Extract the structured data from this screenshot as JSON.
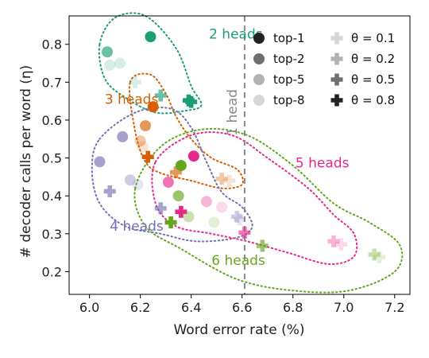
{
  "chart_data": {
    "type": "scatter",
    "xlabel": "Word error rate (%)",
    "ylabel": "# decoder calls per word (η)",
    "xlim": [
      5.92,
      7.26
    ],
    "ylim": [
      0.14,
      0.875
    ],
    "xticks": [
      "6.0",
      "6.2",
      "6.4",
      "6.6",
      "6.8",
      "7.0",
      "7.2"
    ],
    "yticks": [
      "0.2",
      "0.3",
      "0.4",
      "0.5",
      "0.6",
      "0.7",
      "0.8"
    ],
    "grid": false,
    "legend_placement": "top-right",
    "reference_line": {
      "x": 6.61,
      "label": "1 head",
      "color": "#888888"
    },
    "legend_top": [
      {
        "label": "top-1",
        "opacity": 1.0
      },
      {
        "label": "top-2",
        "opacity": 0.65
      },
      {
        "label": "top-5",
        "opacity": 0.35
      },
      {
        "label": "top-8",
        "opacity": 0.18
      }
    ],
    "legend_theta": [
      {
        "label": "θ = 0.1",
        "opacity": 0.18
      },
      {
        "label": "θ = 0.2",
        "opacity": 0.35
      },
      {
        "label": "θ = 0.5",
        "opacity": 0.65
      },
      {
        "label": "θ = 0.8",
        "opacity": 1.0
      }
    ],
    "groups": [
      {
        "label": "2 heads",
        "color": "#1b9e77",
        "label_pos": [
          6.47,
          0.815
        ],
        "region": [
          [
            6.04,
            0.8
          ],
          [
            6.1,
            0.87
          ],
          [
            6.22,
            0.875
          ],
          [
            6.34,
            0.79
          ],
          [
            6.4,
            0.69
          ],
          [
            6.44,
            0.64
          ],
          [
            6.38,
            0.625
          ],
          [
            6.26,
            0.62
          ],
          [
            6.14,
            0.66
          ],
          [
            6.06,
            0.71
          ]
        ],
        "points": [
          {
            "x": 6.24,
            "y": 0.82,
            "marker": "circle",
            "level": 1
          },
          {
            "x": 6.07,
            "y": 0.78,
            "marker": "circle",
            "level": 2
          },
          {
            "x": 6.12,
            "y": 0.75,
            "marker": "circle",
            "level": 4
          },
          {
            "x": 6.08,
            "y": 0.745,
            "marker": "circle",
            "level": 4
          },
          {
            "x": 6.18,
            "y": 0.7,
            "marker": "plus",
            "level": 4
          },
          {
            "x": 6.28,
            "y": 0.665,
            "marker": "plus",
            "level": 2
          },
          {
            "x": 6.39,
            "y": 0.652,
            "marker": "plus",
            "level": 1
          },
          {
            "x": 6.4,
            "y": 0.648,
            "marker": "plus",
            "level": 1
          }
        ]
      },
      {
        "label": "3 heads",
        "color": "#d95f02",
        "label_pos": [
          6.06,
          0.643
        ],
        "region": [
          [
            6.16,
            0.7
          ],
          [
            6.24,
            0.72
          ],
          [
            6.3,
            0.67
          ],
          [
            6.34,
            0.61
          ],
          [
            6.4,
            0.55
          ],
          [
            6.48,
            0.5
          ],
          [
            6.58,
            0.47
          ],
          [
            6.6,
            0.43
          ],
          [
            6.52,
            0.42
          ],
          [
            6.4,
            0.44
          ],
          [
            6.28,
            0.46
          ],
          [
            6.22,
            0.49
          ],
          [
            6.18,
            0.57
          ]
        ],
        "points": [
          {
            "x": 6.25,
            "y": 0.635,
            "marker": "circle",
            "level": 1
          },
          {
            "x": 6.22,
            "y": 0.585,
            "marker": "circle",
            "level": 2
          },
          {
            "x": 6.2,
            "y": 0.545,
            "marker": "circle",
            "level": 3
          },
          {
            "x": 6.21,
            "y": 0.53,
            "marker": "circle",
            "level": 4
          },
          {
            "x": 6.23,
            "y": 0.503,
            "marker": "plus",
            "level": 1
          },
          {
            "x": 6.34,
            "y": 0.462,
            "marker": "plus",
            "level": 2
          },
          {
            "x": 6.52,
            "y": 0.445,
            "marker": "plus",
            "level": 3
          },
          {
            "x": 6.55,
            "y": 0.44,
            "marker": "plus",
            "level": 4
          }
        ]
      },
      {
        "label": "4 heads",
        "color": "#7570b3",
        "label_pos": [
          6.08,
          0.308
        ],
        "region": [
          [
            6.04,
            0.55
          ],
          [
            6.18,
            0.62
          ],
          [
            6.32,
            0.63
          ],
          [
            6.4,
            0.58
          ],
          [
            6.46,
            0.49
          ],
          [
            6.52,
            0.41
          ],
          [
            6.6,
            0.37
          ],
          [
            6.64,
            0.32
          ],
          [
            6.58,
            0.29
          ],
          [
            6.42,
            0.28
          ],
          [
            6.28,
            0.3
          ],
          [
            6.14,
            0.32
          ],
          [
            6.04,
            0.38
          ],
          [
            6.01,
            0.47
          ]
        ],
        "points": [
          {
            "x": 6.13,
            "y": 0.556,
            "marker": "circle",
            "level": 2
          },
          {
            "x": 6.04,
            "y": 0.49,
            "marker": "circle",
            "level": 2
          },
          {
            "x": 6.16,
            "y": 0.442,
            "marker": "circle",
            "level": 3
          },
          {
            "x": 6.19,
            "y": 0.43,
            "marker": "circle",
            "level": 4
          },
          {
            "x": 6.08,
            "y": 0.412,
            "marker": "plus",
            "level": 2
          },
          {
            "x": 6.28,
            "y": 0.367,
            "marker": "plus",
            "level": 2
          },
          {
            "x": 6.58,
            "y": 0.345,
            "marker": "plus",
            "level": 3
          },
          {
            "x": 6.59,
            "y": 0.338,
            "marker": "plus",
            "level": 4
          }
        ]
      },
      {
        "label": "5 heads",
        "color": "#e7298a",
        "label_pos": [
          6.81,
          0.475
        ],
        "region": [
          [
            6.26,
            0.49
          ],
          [
            6.4,
            0.56
          ],
          [
            6.56,
            0.56
          ],
          [
            6.7,
            0.5
          ],
          [
            6.86,
            0.42
          ],
          [
            6.96,
            0.35
          ],
          [
            7.04,
            0.3
          ],
          [
            7.04,
            0.24
          ],
          [
            6.94,
            0.22
          ],
          [
            6.78,
            0.25
          ],
          [
            6.62,
            0.28
          ],
          [
            6.48,
            0.3
          ],
          [
            6.34,
            0.32
          ],
          [
            6.26,
            0.38
          ]
        ],
        "points": [
          {
            "x": 6.41,
            "y": 0.505,
            "marker": "circle",
            "level": 1
          },
          {
            "x": 6.31,
            "y": 0.436,
            "marker": "circle",
            "level": 2
          },
          {
            "x": 6.46,
            "y": 0.385,
            "marker": "circle",
            "level": 3
          },
          {
            "x": 6.52,
            "y": 0.37,
            "marker": "circle",
            "level": 4
          },
          {
            "x": 6.36,
            "y": 0.358,
            "marker": "plus",
            "level": 1
          },
          {
            "x": 6.61,
            "y": 0.303,
            "marker": "plus",
            "level": 2
          },
          {
            "x": 6.96,
            "y": 0.28,
            "marker": "plus",
            "level": 3
          },
          {
            "x": 6.99,
            "y": 0.272,
            "marker": "plus",
            "level": 4
          }
        ]
      },
      {
        "label": "6 heads",
        "color": "#66a61e",
        "label_pos": [
          6.48,
          0.218
        ],
        "region": [
          [
            6.18,
            0.42
          ],
          [
            6.28,
            0.53
          ],
          [
            6.44,
            0.575
          ],
          [
            6.62,
            0.56
          ],
          [
            6.8,
            0.48
          ],
          [
            6.96,
            0.38
          ],
          [
            7.1,
            0.33
          ],
          [
            7.22,
            0.27
          ],
          [
            7.2,
            0.2
          ],
          [
            7.02,
            0.15
          ],
          [
            6.8,
            0.15
          ],
          [
            6.58,
            0.18
          ],
          [
            6.36,
            0.26
          ],
          [
            6.22,
            0.32
          ]
        ],
        "points": [
          {
            "x": 6.36,
            "y": 0.48,
            "marker": "circle",
            "level": 1
          },
          {
            "x": 6.35,
            "y": 0.4,
            "marker": "circle",
            "level": 2
          },
          {
            "x": 6.39,
            "y": 0.345,
            "marker": "circle",
            "level": 3
          },
          {
            "x": 6.49,
            "y": 0.33,
            "marker": "circle",
            "level": 4
          },
          {
            "x": 6.32,
            "y": 0.33,
            "marker": "plus",
            "level": 1
          },
          {
            "x": 6.68,
            "y": 0.268,
            "marker": "plus",
            "level": 2
          },
          {
            "x": 7.12,
            "y": 0.245,
            "marker": "plus",
            "level": 3
          },
          {
            "x": 7.14,
            "y": 0.238,
            "marker": "plus",
            "level": 4
          }
        ]
      }
    ]
  }
}
